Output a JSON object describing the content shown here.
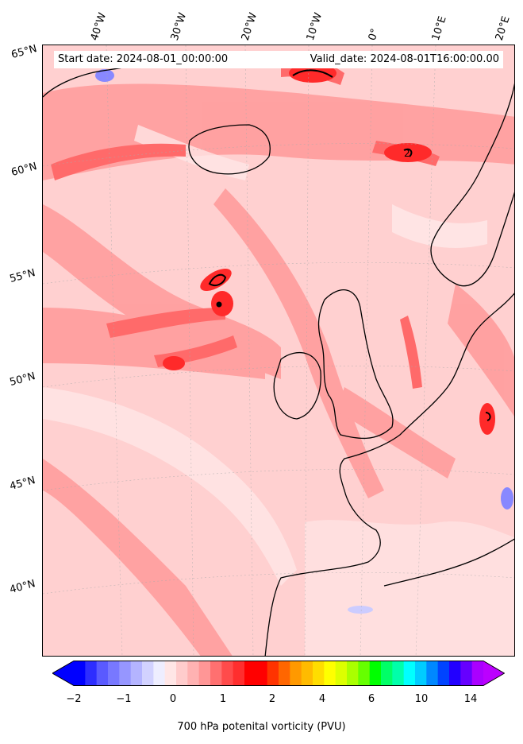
{
  "map": {
    "start_date": "Start date: 2024-08-01_00:00:00",
    "valid_date": "Valid_date: 2024-08-01T16:00:00.00",
    "longitude_labels": [
      "40°W",
      "30°W",
      "20°W",
      "10°W",
      "0°",
      "10°E",
      "20°E"
    ],
    "latitude_labels": [
      "65°N",
      "60°N",
      "55°N",
      "50°N",
      "45°N",
      "40°N"
    ],
    "contour_label": "2",
    "land_outline_color": "#000000",
    "field_colors": {
      "background": "#ffd0d0",
      "light": "#ffe6e6",
      "medium": "#ff9c9c",
      "strong": "#ff6a6a",
      "intense": "#ff2a2a",
      "negative": "#8888ff"
    }
  },
  "colorbar": {
    "title": "700 hPa potenital vorticity (PVU)",
    "tick_labels": [
      "−2",
      "−1",
      "0",
      "1",
      "2",
      "4",
      "6",
      "10",
      "14"
    ],
    "colors": [
      "#0000ff",
      "#2d2dff",
      "#5a5aff",
      "#7878ff",
      "#9696ff",
      "#b4b4ff",
      "#d2d2ff",
      "#eeeeff",
      "#ffe6e6",
      "#ffcccc",
      "#ffb2b2",
      "#ff9696",
      "#ff7070",
      "#ff4b4b",
      "#ff2e2e",
      "#ff0000",
      "#ff0000",
      "#ff3300",
      "#ff6600",
      "#ff9900",
      "#ffbb00",
      "#ffdd00",
      "#ffff00",
      "#ddff00",
      "#aaff00",
      "#66ff00",
      "#00ff00",
      "#00ff66",
      "#00ffaa",
      "#00ffff",
      "#00ccff",
      "#0088ff",
      "#0044ff",
      "#2200ff",
      "#6600ff",
      "#aa00ff"
    ],
    "extend_low_color": "#0000ff",
    "extend_high_color": "#bb00ff"
  }
}
